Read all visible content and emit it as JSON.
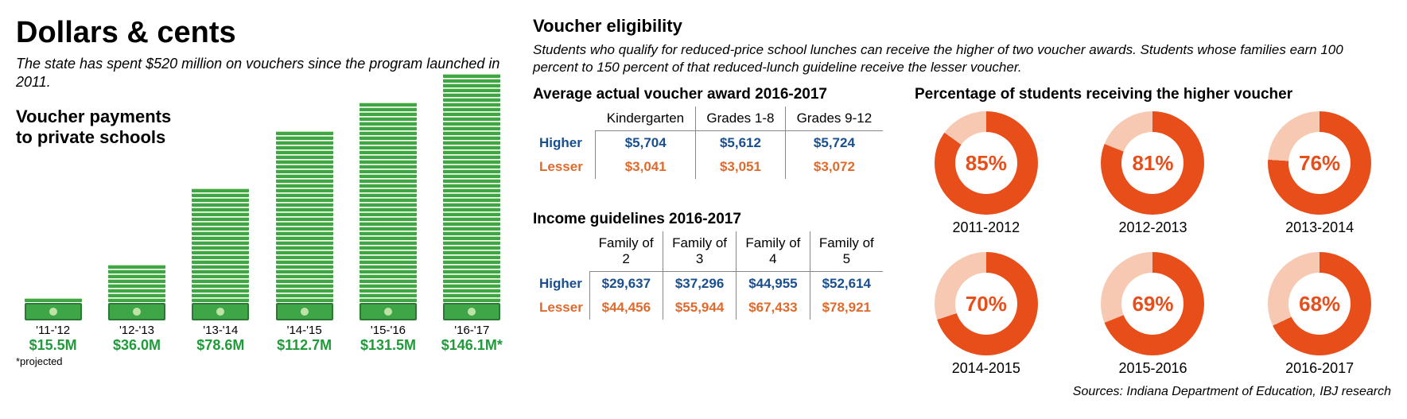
{
  "left": {
    "title": "Dollars & cents",
    "subtitle": "The state has spent $520 million on vouchers since the program launched in 2011.",
    "chart_title_l1": "Voucher payments",
    "chart_title_l2": "to private schools",
    "max_value": 146.1,
    "bar_color": "#3fa648",
    "value_color": "#1f9b3a",
    "bars": [
      {
        "year": "'11-'12",
        "value": 15.5,
        "label": "$15.5M"
      },
      {
        "year": "'12-'13",
        "value": 36.0,
        "label": "$36.0M"
      },
      {
        "year": "'13-'14",
        "value": 78.6,
        "label": "$78.6M"
      },
      {
        "year": "'14-'15",
        "value": 112.7,
        "label": "$112.7M"
      },
      {
        "year": "'15-'16",
        "value": 131.5,
        "label": "$131.5M"
      },
      {
        "year": "'16-'17",
        "value": 146.1,
        "label": "$146.1M*"
      }
    ],
    "footnote": "*projected"
  },
  "eligibility": {
    "heading": "Voucher eligibility",
    "sub": "Students who qualify for reduced-price school lunches can receive the higher of two voucher awards. Students whose families earn 100 percent to 150 percent of that reduced-lunch guideline receive the lesser voucher."
  },
  "award_table": {
    "title": "Average actual voucher award 2016-2017",
    "columns": [
      "Kindergarten",
      "Grades 1-8",
      "Grades 9-12"
    ],
    "higher_label": "Higher",
    "lesser_label": "Lesser",
    "higher": [
      "$5,704",
      "$5,612",
      "$5,724"
    ],
    "lesser": [
      "$3,041",
      "$3,051",
      "$3,072"
    ],
    "higher_color": "#1a4f8f",
    "lesser_color": "#e06a2b"
  },
  "income_table": {
    "title": "Income guidelines 2016-2017",
    "columns": [
      "Family of 2",
      "Family of 3",
      "Family of 4",
      "Family of 5"
    ],
    "higher_label": "Higher",
    "lesser_label": "Lesser",
    "higher": [
      "$29,637",
      "$37,296",
      "$44,955",
      "$52,614"
    ],
    "lesser": [
      "$44,456",
      "$55,944",
      "$67,433",
      "$78,921"
    ]
  },
  "donuts": {
    "title": "Percentage of students receiving the higher voucher",
    "fill_color": "#e84e1a",
    "track_color": "#f8c9b2",
    "text_color": "#e84e1a",
    "items": [
      {
        "pct": 85,
        "label": "85%",
        "year": "2011-2012"
      },
      {
        "pct": 81,
        "label": "81%",
        "year": "2012-2013"
      },
      {
        "pct": 76,
        "label": "76%",
        "year": "2013-2014"
      },
      {
        "pct": 70,
        "label": "70%",
        "year": "2014-2015"
      },
      {
        "pct": 69,
        "label": "69%",
        "year": "2015-2016"
      },
      {
        "pct": 68,
        "label": "68%",
        "year": "2016-2017"
      }
    ]
  },
  "sources": "Sources: Indiana Department of Education, IBJ research"
}
